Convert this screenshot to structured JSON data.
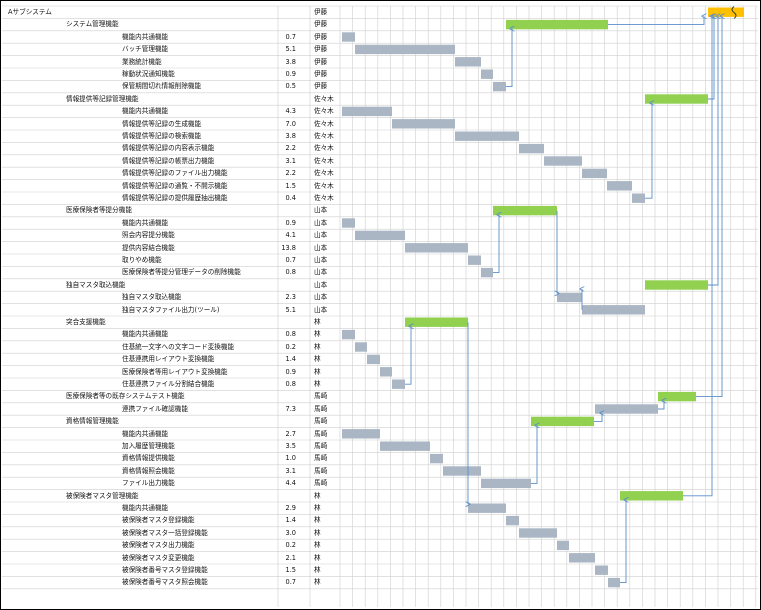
{
  "colors": {
    "task_bar": "#aab6c4",
    "summary_bar": "#92d050",
    "milestone_bar": "#ffc000",
    "arrow": "#5b8fc9",
    "grid": "#cfcfcf"
  },
  "rows": [
    {
      "level": 0,
      "name": "Aサブシステム",
      "value": "",
      "owner": "伊藤"
    },
    {
      "level": 1,
      "name": "システム管理機能",
      "value": "",
      "owner": "伊藤"
    },
    {
      "level": 2,
      "name": "機能内共通機能",
      "value": "0.7",
      "owner": "伊藤"
    },
    {
      "level": 2,
      "name": "バッチ管理機能",
      "value": "5.1",
      "owner": "伊藤"
    },
    {
      "level": 2,
      "name": "業務統計機能",
      "value": "3.8",
      "owner": "伊藤"
    },
    {
      "level": 2,
      "name": "稼動状況通知機能",
      "value": "0.9",
      "owner": "伊藤"
    },
    {
      "level": 2,
      "name": "保管期間切れ情報削除機能",
      "value": "0.5",
      "owner": "伊藤"
    },
    {
      "level": 1,
      "name": "情報提供等記録管理機能",
      "value": "",
      "owner": "佐々木"
    },
    {
      "level": 2,
      "name": "機能内共通機能",
      "value": "4.3",
      "owner": "佐々木"
    },
    {
      "level": 2,
      "name": "情報提供等記録の生成機能",
      "value": "7.0",
      "owner": "佐々木"
    },
    {
      "level": 2,
      "name": "情報提供等記録の検索機能",
      "value": "3.8",
      "owner": "佐々木"
    },
    {
      "level": 2,
      "name": "情報提供等記録の内容表示機能",
      "value": "2.2",
      "owner": "佐々木"
    },
    {
      "level": 2,
      "name": "情報提供等記録の帳票出力機能",
      "value": "3.1",
      "owner": "佐々木"
    },
    {
      "level": 2,
      "name": "情報提供等記録のファイル出力機能",
      "value": "2.2",
      "owner": "佐々木"
    },
    {
      "level": 2,
      "name": "情報提供等記録の通覧・不開示機能",
      "value": "1.5",
      "owner": "佐々木"
    },
    {
      "level": 2,
      "name": "情報提供等記録の提供履歴抽出機能",
      "value": "0.4",
      "owner": "佐々木"
    },
    {
      "level": 1,
      "name": "医療保険者等提分機能",
      "value": "",
      "owner": "山本"
    },
    {
      "level": 2,
      "name": "機能内共通機能",
      "value": "0.9",
      "owner": "山本"
    },
    {
      "level": 2,
      "name": "照会内容提分機能",
      "value": "4.1",
      "owner": "山本"
    },
    {
      "level": 2,
      "name": "提供内容結合機能",
      "value": "13.8",
      "owner": "山本"
    },
    {
      "level": 2,
      "name": "取りやめ機能",
      "value": "0.7",
      "owner": "山本"
    },
    {
      "level": 2,
      "name": "医療保険者等提分管理データの削除機能",
      "value": "0.8",
      "owner": "山本"
    },
    {
      "level": 1,
      "name": "独自マスタ取込機能",
      "value": "",
      "owner": "山本"
    },
    {
      "level": 2,
      "name": "独自マスタ取込機能",
      "value": "2.3",
      "owner": "山本"
    },
    {
      "level": 2,
      "name": "独自マスタファイル出力(ツール)",
      "value": "5.1",
      "owner": "山本"
    },
    {
      "level": 1,
      "name": "突合支援機能",
      "value": "",
      "owner": "林"
    },
    {
      "level": 2,
      "name": "機能内共通機能",
      "value": "0.8",
      "owner": "林"
    },
    {
      "level": 2,
      "name": "住基統一文字への文字コード変換機能",
      "value": "0.2",
      "owner": "林"
    },
    {
      "level": 2,
      "name": "住基連携用レイアウト変換機能",
      "value": "1.4",
      "owner": "林"
    },
    {
      "level": 2,
      "name": "医療保険者等用レイアウト変換機能",
      "value": "0.9",
      "owner": "林"
    },
    {
      "level": 2,
      "name": "住基連携ファイル分割結合機能",
      "value": "0.8",
      "owner": "林"
    },
    {
      "level": 1,
      "name": "医療保険者等の既存システムテスト機能",
      "value": "",
      "owner": "馬崎"
    },
    {
      "level": 2,
      "name": "連携ファイル確認機能",
      "value": "7.3",
      "owner": "馬崎"
    },
    {
      "level": 1,
      "name": "資格情報管理機能",
      "value": "",
      "owner": "馬崎"
    },
    {
      "level": 2,
      "name": "機能内共通機能",
      "value": "2.7",
      "owner": "馬崎"
    },
    {
      "level": 2,
      "name": "加入履歴管理機能",
      "value": "3.5",
      "owner": "馬崎"
    },
    {
      "level": 2,
      "name": "資格情報提供機能",
      "value": "1.0",
      "owner": "馬崎"
    },
    {
      "level": 2,
      "name": "資格情報照会機能",
      "value": "3.1",
      "owner": "馬崎"
    },
    {
      "level": 2,
      "name": "ファイル出力機能",
      "value": "4.4",
      "owner": "馬崎"
    },
    {
      "level": 1,
      "name": "被保険者マスタ管理機能",
      "value": "",
      "owner": "林"
    },
    {
      "level": 2,
      "name": "機能内共通機能",
      "value": "2.9",
      "owner": "林"
    },
    {
      "level": 2,
      "name": "被保険者マスタ登録機能",
      "value": "1.4",
      "owner": "林"
    },
    {
      "level": 2,
      "name": "被保険者マスタ一括登録機能",
      "value": "3.0",
      "owner": "林"
    },
    {
      "level": 2,
      "name": "被保険者マスタ出力機能",
      "value": "0.2",
      "owner": "林"
    },
    {
      "level": 2,
      "name": "被保険者マスタ変更機能",
      "value": "2.1",
      "owner": "林"
    },
    {
      "level": 2,
      "name": "被保険者番号マスタ登録機能",
      "value": "1.5",
      "owner": "林"
    },
    {
      "level": 2,
      "name": "被保険者番号マスタ照会機能",
      "value": "0.7",
      "owner": "林"
    }
  ]
}
